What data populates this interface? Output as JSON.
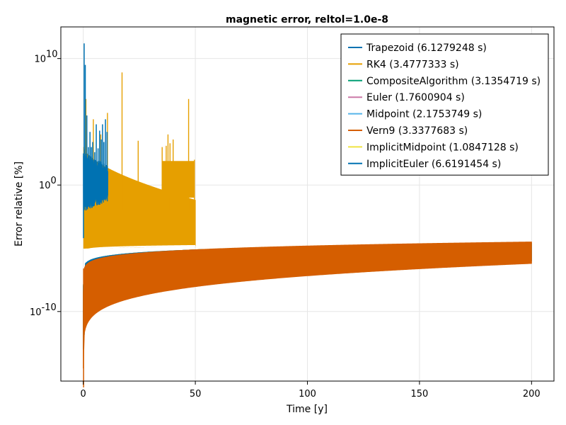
{
  "chart_data": {
    "type": "line",
    "title": "magnetic error, reltol=1.0e-8",
    "xlabel": "Time [y]",
    "ylabel": "Error relative [%]",
    "xlim": [
      -10,
      210
    ],
    "ylim_log10": [
      -15.5,
      12.5
    ],
    "y_scale": "log10",
    "x_ticks": [
      0,
      50,
      100,
      150,
      200
    ],
    "y_ticks": [
      {
        "exp": 10,
        "base": "10",
        "sup": "10"
      },
      {
        "exp": 0,
        "base": "10",
        "sup": "0"
      },
      {
        "exp": -10,
        "base": "10",
        "sup": "-10"
      }
    ],
    "grid": true,
    "legend_position": "top-right",
    "series": [
      {
        "name": "Trapezoid (6.1279248 s)",
        "color": "#0072b2",
        "x_end": 11,
        "log_range_start": [
          -4,
          10.5
        ],
        "log_range_end": [
          -1,
          1.5
        ]
      },
      {
        "name": "RK4 (3.4777333 s)",
        "color": "#e69f00",
        "x_end": 50,
        "log_range_start": [
          -5,
          3
        ],
        "log_range_end": [
          -4.8,
          -1.2
        ]
      },
      {
        "name": "CompositeAlgorithm (3.1354719 s)",
        "color": "#009e73",
        "x_end": 200,
        "log_range_start": [
          -13,
          -8
        ],
        "log_range_end": [
          -6,
          -4.6
        ]
      },
      {
        "name": "Euler (1.7600904 s)",
        "color": "#cc79a7",
        "x_end": 200,
        "log_range_start": [
          -13,
          -8
        ],
        "log_range_end": [
          -6,
          -4.6
        ]
      },
      {
        "name": "Midpoint (2.1753749 s)",
        "color": "#56b4e9",
        "x_end": 200,
        "log_range_start": [
          -13,
          -8
        ],
        "log_range_end": [
          -6,
          -4.6
        ]
      },
      {
        "name": "Vern9 (3.3377683 s)",
        "color": "#d55e00",
        "x_end": 200,
        "log_range_start": [
          -14.5,
          -8.5
        ],
        "log_range_end": [
          -6.2,
          -4.5
        ]
      },
      {
        "name": "ImplicitMidpoint (1.0847128 s)",
        "color": "#f0e442",
        "x_end": 200,
        "log_range_start": [
          -13,
          -8
        ],
        "log_range_end": [
          -6,
          -4.6
        ]
      },
      {
        "name": "ImplicitEuler (6.6191454 s)",
        "color": "#0072b2",
        "x_end": 200,
        "log_range_start": [
          -13,
          -8
        ],
        "log_range_end": [
          -6,
          -4.6
        ]
      }
    ],
    "rk4_spikes": [
      {
        "x": 1.2,
        "log10": 6.8
      },
      {
        "x": 4.5,
        "log10": 5.2
      },
      {
        "x": 7.8,
        "log10": 4.0
      },
      {
        "x": 10.8,
        "log10": 5.7
      },
      {
        "x": 17.3,
        "log10": 8.9
      },
      {
        "x": 24.5,
        "log10": 3.5
      },
      {
        "x": 35.2,
        "log10": 3.0
      },
      {
        "x": 37.0,
        "log10": 3.1
      },
      {
        "x": 37.8,
        "log10": 4.0
      },
      {
        "x": 38.7,
        "log10": 3.3
      },
      {
        "x": 40.1,
        "log10": 3.6
      },
      {
        "x": 47.0,
        "log10": 6.8
      },
      {
        "x": 49.6,
        "log10": 2.0
      }
    ],
    "trapezoid_spikes": [
      {
        "x": 0.4,
        "log10": 11.2
      },
      {
        "x": 0.9,
        "log10": 9.5
      },
      {
        "x": 1.6,
        "log10": 5.5
      },
      {
        "x": 2.3,
        "log10": 3.0
      },
      {
        "x": 3.0,
        "log10": 4.2
      },
      {
        "x": 3.6,
        "log10": 3.0
      },
      {
        "x": 4.2,
        "log10": 3.4
      },
      {
        "x": 5.1,
        "log10": 2.6
      },
      {
        "x": 5.8,
        "log10": 4.8
      },
      {
        "x": 6.6,
        "log10": 2.9
      },
      {
        "x": 7.3,
        "log10": 4.3
      },
      {
        "x": 8.0,
        "log10": 3.6
      },
      {
        "x": 8.6,
        "log10": 4.8
      },
      {
        "x": 9.2,
        "log10": 3.4
      },
      {
        "x": 9.9,
        "log10": 5.2
      },
      {
        "x": 10.6,
        "log10": 4.2
      }
    ]
  }
}
